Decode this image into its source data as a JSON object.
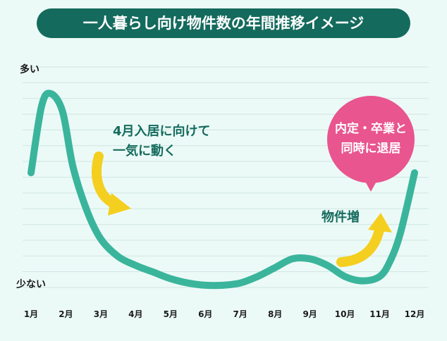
{
  "chart_data": {
    "type": "line",
    "title": "一人暮らし向け物件数の年間推移イメージ",
    "xlabel": "",
    "ylabel": "",
    "categories": [
      "1月",
      "2月",
      "3月",
      "4月",
      "5月",
      "6月",
      "7月",
      "8月",
      "9月",
      "10月",
      "11月",
      "12月"
    ],
    "y_tick_labels": {
      "top": "多い",
      "bottom": "少ない"
    },
    "ylim": [
      0,
      100
    ],
    "grid": true,
    "series": [
      {
        "x": [
          1.0,
          1.3,
          1.55,
          1.9,
          2.2,
          2.6,
          3.0,
          3.5,
          4.0,
          4.5,
          5.0,
          5.5,
          6.0,
          6.5,
          7.0,
          7.5,
          8.0,
          8.5,
          9.0,
          9.5,
          10.0,
          10.5,
          11.0,
          11.3,
          11.6,
          12.0
        ],
        "values": [
          52,
          82,
          88,
          80,
          55,
          35,
          22,
          14,
          10,
          7,
          4,
          2,
          1,
          1,
          2,
          5,
          9,
          13,
          13,
          10,
          5,
          3,
          5,
          12,
          25,
          52
        ],
        "color": "#3ab59c"
      }
    ],
    "annotations": {
      "early": {
        "text": [
          "4月入居に向けて",
          "一気に動く"
        ]
      },
      "increase": {
        "text": "物件増"
      },
      "bubble": {
        "text": [
          "内定・卒業と",
          "同時に退居"
        ],
        "color": "#e8558f"
      }
    },
    "colors": {
      "title_bg": "#146a5d",
      "title_text": "#ffffff",
      "annotation_text": "#156b5e",
      "arrow_yellow": "#f4cf1f",
      "grid": "#cfe6e1",
      "axis_text": "#1a1a1a"
    }
  }
}
